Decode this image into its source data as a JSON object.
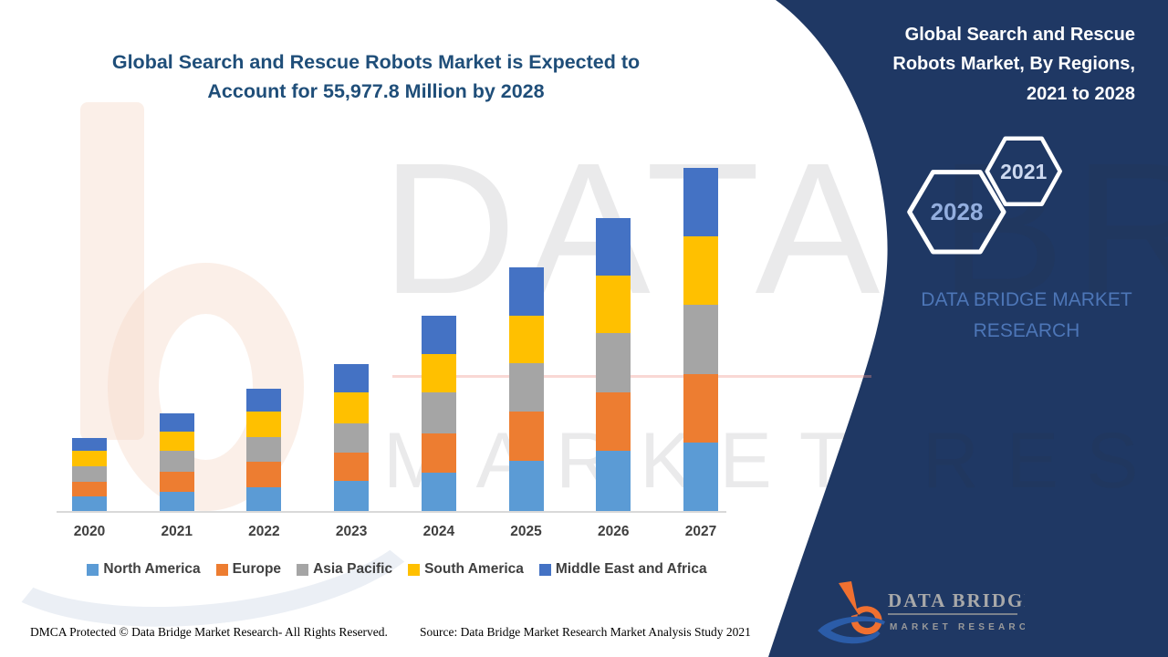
{
  "colors": {
    "panel_navy": "#1F3864",
    "title_blue": "#1F4E79",
    "axis_gray": "#D9D9D9",
    "label_gray": "#3F3F3F",
    "panel_brand_blue": "#4D76B7"
  },
  "chart": {
    "title_lines": [
      "Global Search and Rescue Robots Market is Expected to",
      "Account for 55,977.8 Million by 2028"
    ]
  },
  "chart_data": {
    "type": "bar",
    "stacked": true,
    "title": "Global Search and Rescue Robots Market is Expected to Account for 55,977.8 Million by 2028",
    "xlabel": "",
    "ylabel": "",
    "value_axis": "none shown (relative units estimated from bar pixel heights)",
    "legend_position": "bottom",
    "categories": [
      "2020",
      "2021",
      "2022",
      "2023",
      "2024",
      "2025",
      "2026",
      "2027"
    ],
    "series": [
      {
        "name": "North America",
        "color": "#5B9BD5",
        "values": [
          16,
          21,
          26,
          33,
          42,
          55,
          66,
          75
        ]
      },
      {
        "name": "Europe",
        "color": "#ED7D31",
        "values": [
          16,
          22,
          28,
          31,
          43,
          54,
          64,
          75
        ]
      },
      {
        "name": "Asia Pacific",
        "color": "#A5A5A5",
        "values": [
          17,
          23,
          27,
          32,
          45,
          53,
          65,
          76
        ]
      },
      {
        "name": "South America",
        "color": "#FFC000",
        "values": [
          17,
          21,
          28,
          34,
          42,
          52,
          63,
          75
        ]
      },
      {
        "name": "Middle East and Africa",
        "color": "#4472C4",
        "values": [
          14,
          20,
          25,
          31,
          42,
          53,
          63,
          75
        ]
      }
    ]
  },
  "side_panel": {
    "title_lines": [
      "Global Search and Rescue",
      "Robots Market, By Regions,",
      "2021 to 2028"
    ],
    "badge_back": "2028",
    "badge_front": "2021",
    "brand_text": "DATA BRIDGE MARKET RESEARCH",
    "logo_line1": "DATA BRIDGE",
    "logo_line2": "MARKET RESEARCH"
  },
  "watermark": {
    "line1": "DATA BRIDGE",
    "line2": "MARKET RESEARCH"
  },
  "footer": {
    "dmca": "DMCA Protected © Data Bridge Market Research- All Rights Reserved.",
    "source": "Source: Data Bridge Market Research Market Analysis Study 2021"
  }
}
